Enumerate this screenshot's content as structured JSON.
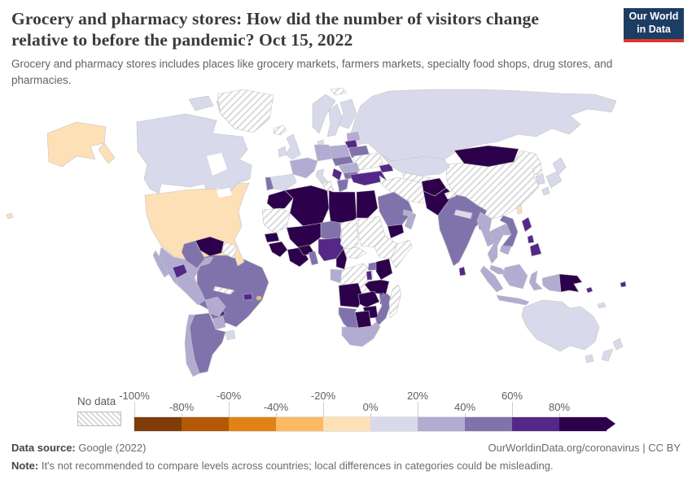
{
  "header": {
    "title": "Grocery and pharmacy stores: How did the number of visitors change relative to before the pandemic? Oct 15, 2022",
    "subtitle": "Grocery and pharmacy stores includes places like grocery markets, farmers markets, specialty food shops, drug stores, and pharmacies.",
    "logo": {
      "line1": "Our World",
      "line2": "in Data",
      "bg": "#1d3d63",
      "stripe": "#d93a2b"
    }
  },
  "legend": {
    "no_data_label": "No data",
    "ticks": [
      "-100%",
      "-80%",
      "-60%",
      "-40%",
      "-20%",
      "0%",
      "20%",
      "40%",
      "60%",
      "80%"
    ],
    "colors": [
      "#7f3b08",
      "#b35806",
      "#e08214",
      "#fdb863",
      "#fee0b6",
      "#d8daeb",
      "#b2abd2",
      "#8073ac",
      "#542788",
      "#2d004b"
    ]
  },
  "footer": {
    "source_label": "Data source:",
    "source_value": " Google (2022)",
    "credit": "OurWorldinData.org/coronavirus | CC BY",
    "note_label": "Note:",
    "note_value": " It's not recommended to compare levels across countries; local differences in categories could be misleading."
  },
  "chart_data": {
    "type": "choropleth_map",
    "title": "Grocery and pharmacy stores: How did the number of visitors change relative to before the pandemic?",
    "date": "Oct 15, 2022",
    "metric": "Percent change in visitors vs. pre-pandemic baseline",
    "legend_position": "bottom",
    "bins": [
      {
        "range": "-100% to -80%",
        "color": "#7f3b08"
      },
      {
        "range": "-80% to -60%",
        "color": "#b35806"
      },
      {
        "range": "-60% to -40%",
        "color": "#e08214"
      },
      {
        "range": "-40% to -20%",
        "color": "#fdb863"
      },
      {
        "range": "-20% to 0%",
        "color": "#fee0b6"
      },
      {
        "range": "0% to 20%",
        "color": "#d8daeb"
      },
      {
        "range": "20% to 40%",
        "color": "#b2abd2"
      },
      {
        "range": "40% to 60%",
        "color": "#8073ac"
      },
      {
        "range": "60% to 80%",
        "color": "#542788"
      },
      {
        "range": "80%+",
        "color": "#2d004b"
      },
      {
        "range": "No data",
        "color": "hatch"
      }
    ],
    "countries": {
      "greenland": "No data",
      "canada": "0% to 20%",
      "united-states": "-20% to 0%",
      "mexico": "20% to 40%",
      "central-america": "40% to 60%",
      "panama": "60% to 80%",
      "cuba": "No data",
      "dominican-republic": "60% to 80%",
      "puerto-rico": "-40% to -20%",
      "venezuela": "80%+",
      "guyana-suriname": "No data",
      "colombia": "40% to 60%",
      "ecuador": "60% to 80%",
      "peru": "20% to 40%",
      "brazil": "40% to 60%",
      "bolivia": "20% to 40%",
      "paraguay": "20% to 40%",
      "uruguay": "0% to 20%",
      "argentina": "40% to 60%",
      "chile": "20% to 40%",
      "iceland": "No data",
      "norway": "0% to 20%",
      "sweden": "0% to 20%",
      "finland": "0% to 20%",
      "denmark": "0% to 20%",
      "united-kingdom": "0% to 20%",
      "ireland": "0% to 20%",
      "estonia-latvia": "20% to 40%",
      "lithuania": "60% to 80%",
      "belarus": "40% to 60%",
      "poland": "20% to 40%",
      "germany": "20% to 40%",
      "france": "20% to 40%",
      "spain": "0% to 20%",
      "portugal": "40% to 60%",
      "italy": "0% to 20%",
      "czech-slovakia-hungary": "40% to 60%",
      "romania": "20% to 40%",
      "serbia": "60% to 80%",
      "bulgaria": "40% to 60%",
      "greece": "40% to 60%",
      "ukraine": "No data",
      "turkey": "60% to 80%",
      "caucasus": "60% to 80%",
      "russia": "0% to 20%",
      "svalbard": "No data",
      "kazakhstan": "0% to 20%",
      "central-asia": "No data",
      "iran-iraq": "No data",
      "saudi-arabia": "40% to 60%",
      "yemen": "80%+",
      "oman": "20% to 40%",
      "uae": "20% to 40%",
      "afghanistan": "80%+",
      "pakistan": "80%+",
      "india": "40% to 60%",
      "kashmir": "No data",
      "nepal": "0% to 20%",
      "bangladesh": "60% to 80%",
      "sri-lanka": "60% to 80%",
      "china": "No data",
      "mongolia": "80%+",
      "north-korea": "No data",
      "south-korea": "0% to 20%",
      "japan": "0% to 20%",
      "taiwan": "-20% to 0%",
      "myanmar": "20% to 40%",
      "thailand": "20% to 40%",
      "laos": "20% to 40%",
      "vietnam": "40% to 60%",
      "cambodia": "20% to 40%",
      "malaysia": "20% to 40%",
      "indonesia": "20% to 40%",
      "philippines": "60% to 80%",
      "indonesian-papua": "20% to 40%",
      "papua-new-guinea": "80%+",
      "solomon-islands": "60% to 80%",
      "fiji": "60% to 80%",
      "new-caledonia": "0% to 20%",
      "australia": "0% to 20%",
      "new-zealand": "0% to 20%",
      "morocco": "80%+",
      "western-sahara-mauritania": "No data",
      "algeria": "80%+",
      "tunisia": "No data",
      "libya": "80%+",
      "egypt": "80%+",
      "mali": "80%+",
      "senegal": "80%+",
      "guinea": "80%+",
      "cote-divoire-ghana": "80%+",
      "burkina-faso": "80%+",
      "benin-togo": "40% to 60%",
      "niger": "40% to 60%",
      "nigeria": "60% to 80%",
      "chad": "No data",
      "sudan": "No data",
      "ethiopia": "No data",
      "somalia": "No data",
      "central-african-republic": "No data",
      "cameroon": "80%+",
      "gabon-congo": "20% to 40%",
      "drc": "No data",
      "uganda": "40% to 60%",
      "kenya": "80%+",
      "rwanda-burundi": "60% to 80%",
      "tanzania": "80%+",
      "angola": "80%+",
      "zambia": "80%+",
      "malawi": "60% to 80%",
      "mozambique": "40% to 60%",
      "zimbabwe": "80%+",
      "botswana": "80%+",
      "namibia": "40% to 60%",
      "south-africa": "20% to 40%",
      "madagascar": "No data"
    }
  }
}
